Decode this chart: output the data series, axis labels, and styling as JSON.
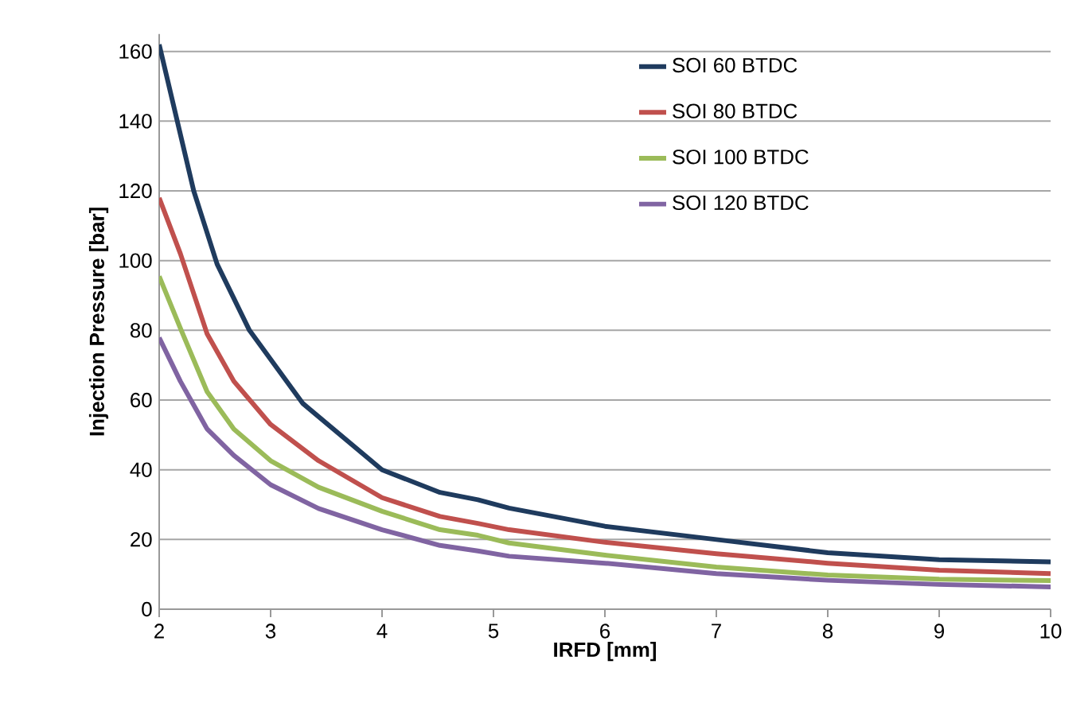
{
  "chart_data": {
    "type": "line",
    "xlabel": "IRFD [mm]",
    "ylabel": "Injection Pressure [bar]",
    "xlim": [
      2,
      10
    ],
    "ylim": [
      0,
      165
    ],
    "xticks": [
      2,
      3,
      4,
      5,
      6,
      7,
      8,
      9,
      10
    ],
    "yticks": [
      0,
      20,
      40,
      60,
      80,
      100,
      120,
      140,
      160
    ],
    "grid": "y",
    "legend": "top right",
    "marker": "none",
    "line_style": "solid",
    "series": [
      {
        "name": "SOI 60 BTDC",
        "color": "#1f3b5e",
        "x": [
          2,
          2.31,
          2.52,
          2.81,
          3.29,
          4,
          4.52,
          4.86,
          5.14,
          6,
          7,
          8,
          9,
          10
        ],
        "values": [
          162,
          120,
          99,
          80,
          59,
          40,
          33.5,
          31.4,
          29,
          23.8,
          20,
          16.2,
          14.2,
          13.6
        ]
      },
      {
        "name": "SOI 80 BTDC",
        "color": "#c0504d",
        "x": [
          2,
          2.19,
          2.43,
          2.67,
          3,
          3.43,
          4,
          4.52,
          4.86,
          5.14,
          6,
          7,
          8,
          9,
          10
        ],
        "values": [
          118,
          102,
          79,
          65.4,
          53,
          42.6,
          32,
          26.6,
          24.6,
          22.8,
          19.2,
          15.9,
          13.2,
          11.2,
          10.2
        ]
      },
      {
        "name": "SOI 100 BTDC",
        "color": "#9bbb59",
        "x": [
          2,
          2.19,
          2.43,
          2.67,
          3,
          3.43,
          4,
          4.52,
          4.86,
          5.14,
          6,
          7,
          8,
          9,
          10
        ],
        "values": [
          95.5,
          80.6,
          62.4,
          51.7,
          42.6,
          35,
          28.1,
          22.8,
          21.2,
          19,
          15.5,
          12.1,
          9.8,
          8.6,
          8.2
        ]
      },
      {
        "name": "SOI 120 BTDC",
        "color": "#8064a2",
        "x": [
          2,
          2.19,
          2.43,
          2.67,
          3,
          3.43,
          4,
          4.52,
          4.86,
          5.14,
          6,
          7,
          8,
          9,
          10
        ],
        "values": [
          77.9,
          65.4,
          51.7,
          44.1,
          35.7,
          28.9,
          22.8,
          18.3,
          16.7,
          15.2,
          13.2,
          10.2,
          8.3,
          7.1,
          6.4
        ]
      }
    ]
  }
}
